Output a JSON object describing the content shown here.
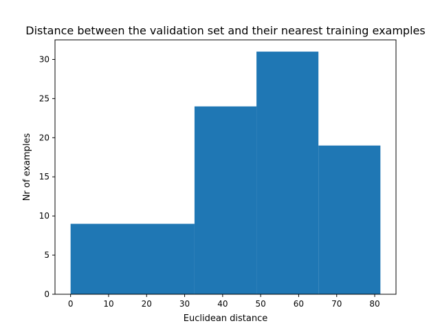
{
  "chart_data": {
    "type": "bar",
    "title": "Distance between the validation set and their nearest training examples",
    "xlabel": "Euclidean distance",
    "ylabel": "Nr of examples",
    "bins": [
      {
        "start": 0,
        "end": 32.6,
        "count": 9
      },
      {
        "start": 32.6,
        "end": 48.9,
        "count": 24
      },
      {
        "start": 48.9,
        "end": 65.2,
        "count": 31
      },
      {
        "start": 65.2,
        "end": 81.5,
        "count": 19
      }
    ],
    "xlim": [
      -4.1,
      85.6
    ],
    "ylim": [
      0,
      32.5
    ],
    "xticks": [
      0,
      10,
      20,
      30,
      40,
      50,
      60,
      70,
      80
    ],
    "yticks": [
      0,
      5,
      10,
      15,
      20,
      25,
      30
    ],
    "bar_color": "#1f77b4",
    "grid": false,
    "legend": false
  }
}
